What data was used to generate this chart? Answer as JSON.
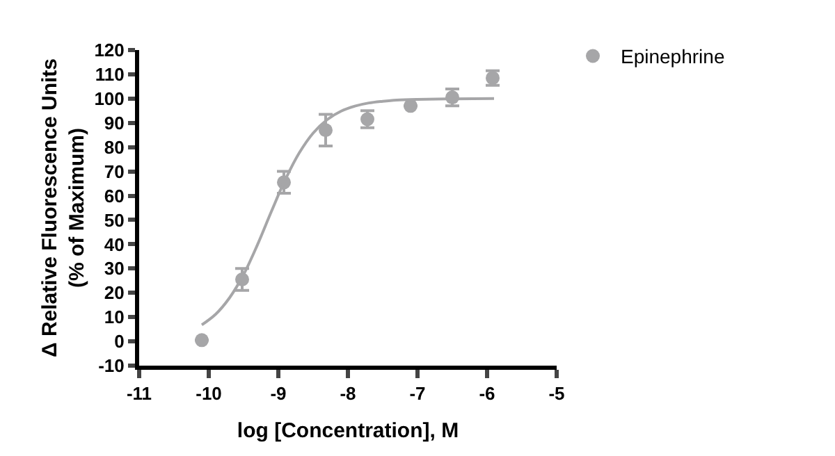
{
  "chart_data": {
    "type": "scatter",
    "xlabel": "log [Concentration], M",
    "ylabel": "Δ Relative Fluorescence Units\n(% of Maximum)",
    "xlim": [
      -11,
      -5
    ],
    "xticks": [
      -11,
      -10,
      -9,
      -8,
      -7,
      -6,
      -5
    ],
    "ylim": [
      -10,
      120
    ],
    "yticks": [
      -10,
      0,
      10,
      20,
      30,
      40,
      50,
      60,
      70,
      80,
      90,
      100,
      110,
      120
    ],
    "grid": false,
    "legend": "top right",
    "series": [
      {
        "name": "Epinephrine",
        "marker": "circle",
        "color": "#a6a6a8",
        "x": [
          -10.1,
          -9.52,
          -8.92,
          -8.32,
          -7.72,
          -7.1,
          -6.5,
          -5.92
        ],
        "values": [
          0.5,
          25.5,
          65.5,
          87,
          91.5,
          97,
          100.5,
          108.5
        ],
        "errors": [
          null,
          4.5,
          4.5,
          6.5,
          3.5,
          null,
          3.5,
          3
        ]
      },
      {
        "type": "line",
        "marker": "none",
        "color": "#a6a6a8",
        "x": [
          -10.1,
          -9.9,
          -9.7,
          -9.5,
          -9.3,
          -9.1,
          -8.9,
          -8.7,
          -8.5,
          -8.3,
          -8.1,
          -7.9,
          -7.7,
          -7.5,
          -7.3,
          -7.0,
          -6.5,
          -5.9
        ],
        "values": [
          6.8,
          11.2,
          18.0,
          27.5,
          39.8,
          53.5,
          66.6,
          77.6,
          85.8,
          91.3,
          94.8,
          96.9,
          98.2,
          98.9,
          99.4,
          99.7,
          99.9,
          100
        ]
      }
    ]
  }
}
